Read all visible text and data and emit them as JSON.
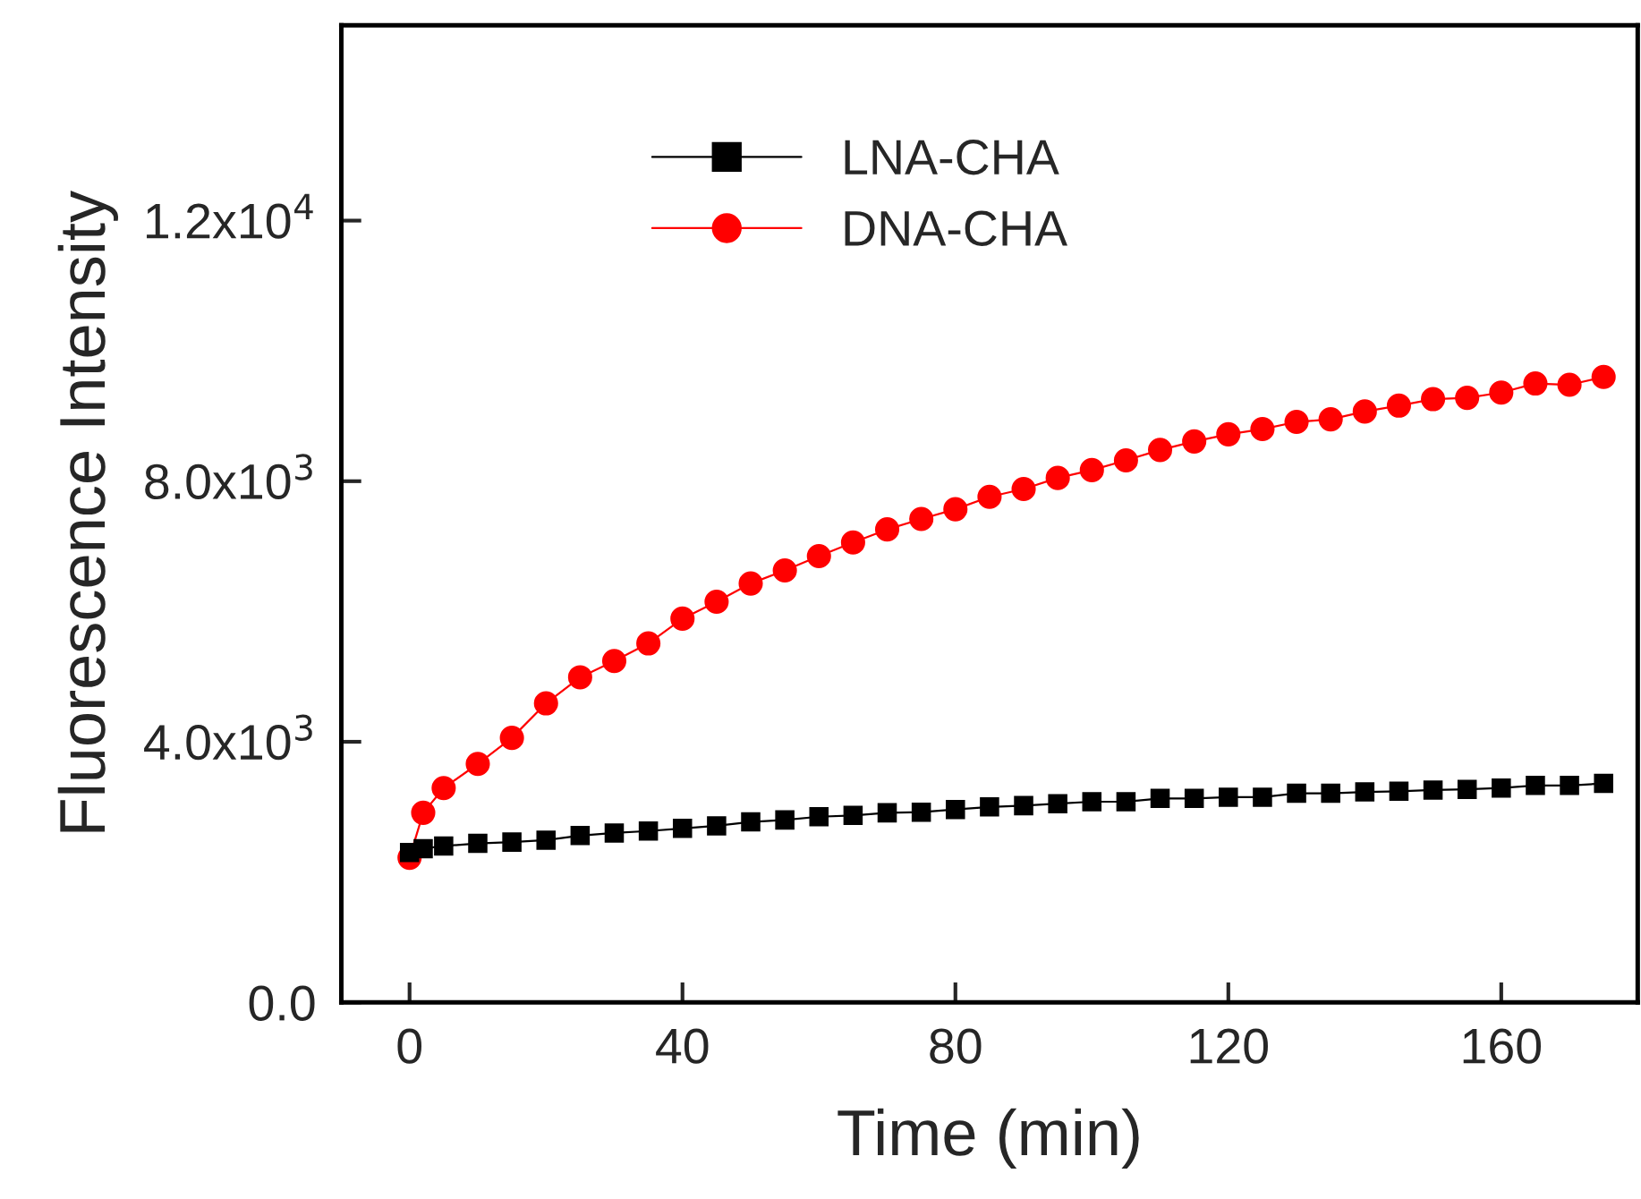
{
  "chart_data": {
    "type": "line",
    "xlabel": "Time (min)",
    "ylabel": "Fluorescence Intensity",
    "x": [
      0,
      2,
      5,
      10,
      15,
      20,
      25,
      30,
      35,
      40,
      45,
      50,
      55,
      60,
      65,
      70,
      75,
      80,
      85,
      90,
      95,
      100,
      105,
      110,
      115,
      120,
      125,
      130,
      135,
      140,
      145,
      150,
      155,
      160,
      165,
      170,
      175
    ],
    "series": [
      {
        "name": "LNA-CHA",
        "color": "#000000",
        "marker": "square",
        "values": [
          2300,
          2360,
          2400,
          2440,
          2460,
          2490,
          2560,
          2600,
          2630,
          2670,
          2710,
          2770,
          2800,
          2850,
          2870,
          2910,
          2920,
          2960,
          3000,
          3020,
          3050,
          3080,
          3080,
          3130,
          3130,
          3150,
          3150,
          3210,
          3210,
          3230,
          3240,
          3260,
          3270,
          3290,
          3330,
          3330,
          3360
        ]
      },
      {
        "name": "DNA-CHA",
        "color": "#ff0000",
        "marker": "circle",
        "values": [
          2220,
          2910,
          3290,
          3660,
          4060,
          4590,
          4990,
          5240,
          5510,
          5890,
          6150,
          6430,
          6630,
          6850,
          7060,
          7260,
          7420,
          7570,
          7760,
          7880,
          8050,
          8170,
          8320,
          8480,
          8610,
          8720,
          8800,
          8910,
          8950,
          9070,
          9160,
          9260,
          9280,
          9360,
          9500,
          9480,
          9600
        ]
      }
    ],
    "xlim": [
      -10,
      180
    ],
    "xticks": [
      0,
      40,
      80,
      120,
      160
    ],
    "ylim": [
      0,
      15000
    ],
    "yticks": [
      {
        "value": 0,
        "label": "0.0"
      },
      {
        "value": 4000,
        "label": "4.0x10$^{3}$"
      },
      {
        "value": 8000,
        "label": "8.0x10$^{3}$"
      },
      {
        "value": 12000,
        "label": "1.2x10$^{4}$"
      }
    ],
    "legend": "top",
    "grid": false,
    "line_style": "solid"
  }
}
